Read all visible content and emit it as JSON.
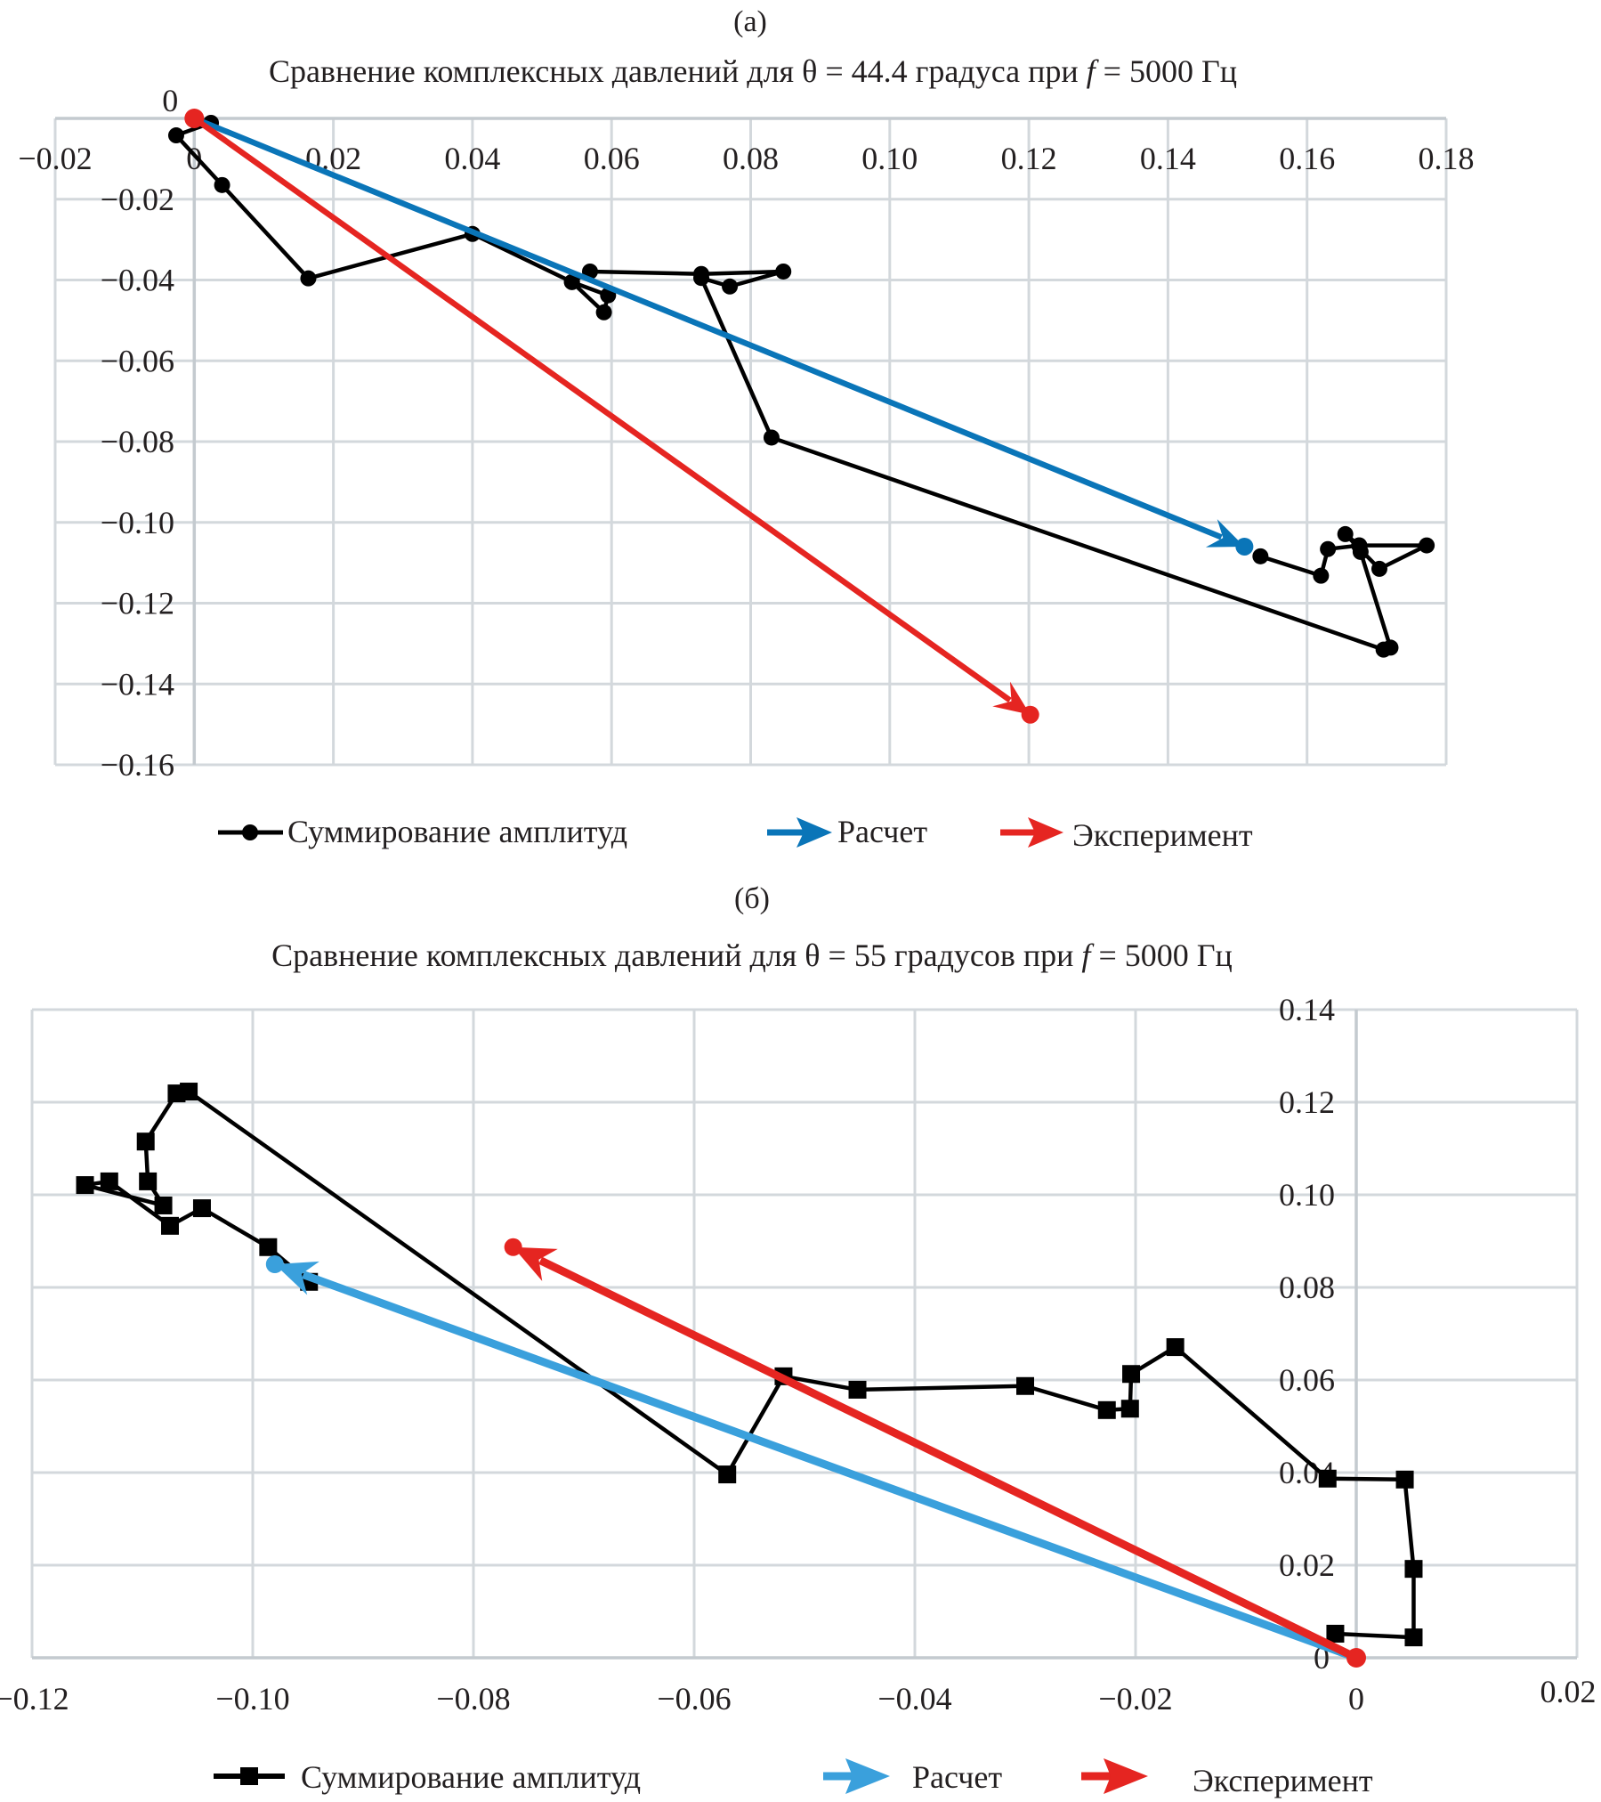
{
  "chart_data": [
    {
      "panel_label": "(а)",
      "type": "line",
      "title_parts": [
        "Сравнение комплексных давлений для θ = 44.4 градуса при ",
        "f",
        " = 5000 Гц"
      ],
      "xlabel": "",
      "ylabel": "",
      "xlim": [
        -0.02,
        0.18
      ],
      "ylim": [
        -0.16,
        0
      ],
      "grid": true,
      "legend_position": "bottom",
      "x_ticks": [
        "−0.02",
        "0",
        "0.02",
        "0.04",
        "0.06",
        "0.08",
        "0.10",
        "0.12",
        "0.14",
        "0.16",
        "0.18"
      ],
      "x_tick_values": [
        -0.02,
        0,
        0.02,
        0.04,
        0.06,
        0.08,
        0.1,
        0.12,
        0.14,
        0.16,
        0.18
      ],
      "y_ticks": [
        "0",
        "−0.02",
        "−0.04",
        "−0.06",
        "−0.08",
        "−0.10",
        "−0.12",
        "−0.14",
        "−0.16"
      ],
      "y_tick_values": [
        0,
        -0.02,
        -0.04,
        -0.06,
        -0.08,
        -0.1,
        -0.12,
        -0.14,
        -0.16
      ],
      "series": [
        {
          "name": "Суммирование амплитуд",
          "kind": "line-markers",
          "marker": "circle",
          "color": "#000000",
          "x": [
            0.0024,
            -0.0026,
            0.004,
            0.0164,
            0.04,
            0.0543,
            0.0595,
            0.0589,
            0.0543,
            0.0569,
            0.0729,
            0.0847,
            0.077,
            0.0729,
            0.083,
            0.171,
            0.172,
            0.1677,
            0.1675,
            0.1655,
            0.1704,
            0.1772,
            0.1675,
            0.163,
            0.162,
            0.1533
          ],
          "y": [
            -0.0011,
            -0.0042,
            -0.0165,
            -0.0396,
            -0.0286,
            -0.0405,
            -0.0438,
            -0.048,
            -0.0405,
            -0.0379,
            -0.0385,
            -0.0379,
            -0.0416,
            -0.0395,
            -0.079,
            -0.1315,
            -0.131,
            -0.1073,
            -0.1057,
            -0.1029,
            -0.1115,
            -0.1057,
            -0.1057,
            -0.1066,
            -0.1132,
            -0.1084
          ]
        },
        {
          "name": "Расчет",
          "kind": "arrow",
          "color": "#0a75b8",
          "x": [
            0,
            0.151
          ],
          "y": [
            0,
            -0.106
          ]
        },
        {
          "name": "Эксперимент",
          "kind": "arrow",
          "color": "#e52521",
          "x": [
            0,
            0.1202
          ],
          "y": [
            0,
            -0.1476
          ]
        }
      ]
    },
    {
      "panel_label": "(б)",
      "type": "line",
      "title_parts": [
        "Сравнение комплексных давлений для θ = 55 градусов при ",
        "f",
        " = 5000 Гц"
      ],
      "xlabel": "",
      "ylabel": "",
      "xlim": [
        -0.12,
        0.02
      ],
      "ylim": [
        0,
        0.14
      ],
      "grid": true,
      "legend_position": "bottom",
      "x_ticks": [
        "−0.12",
        "−0.10",
        "−0.08",
        "−0.06",
        "−0.04",
        "−0.02",
        "0",
        "0.02"
      ],
      "x_tick_values": [
        -0.12,
        -0.1,
        -0.08,
        -0.06,
        -0.04,
        -0.02,
        0,
        0.02
      ],
      "y_ticks": [
        "0",
        "0.02",
        "0.04",
        "0.06",
        "0.08",
        "0.10",
        "0.12",
        "0.14"
      ],
      "y_tick_values": [
        0,
        0.02,
        0.04,
        0.06,
        0.08,
        0.1,
        0.12,
        0.14
      ],
      "series": [
        {
          "name": "Суммирование амплитуд",
          "kind": "line-markers",
          "marker": "square",
          "color": "#000000",
          "x": [
            -0.0019,
            0.0052,
            0.0052,
            0.0044,
            -0.0026,
            -0.0164,
            -0.0204,
            -0.0205,
            -0.0226,
            -0.03,
            -0.0452,
            -0.0519,
            -0.057,
            -0.1058,
            -0.1069,
            -0.1097,
            -0.1095,
            -0.1081,
            -0.1152,
            -0.113,
            -0.1075,
            -0.1046,
            -0.0986,
            -0.0949
          ],
          "y": [
            0.0052,
            0.0044,
            0.0192,
            0.0385,
            0.0387,
            0.0671,
            0.0613,
            0.0538,
            0.0535,
            0.0587,
            0.0579,
            0.0608,
            0.0396,
            0.1223,
            0.1219,
            0.1115,
            0.1029,
            0.0977,
            0.1021,
            0.1029,
            0.0933,
            0.0971,
            0.0887,
            0.0812
          ]
        },
        {
          "name": "Расчет",
          "kind": "arrow",
          "color": "#3aa0dc",
          "x": [
            0,
            -0.098
          ],
          "y": [
            0,
            0.085
          ]
        },
        {
          "name": "Эксперимент",
          "kind": "arrow",
          "color": "#e52521",
          "x": [
            0,
            -0.0764
          ],
          "y": [
            0,
            0.0887
          ]
        }
      ]
    }
  ]
}
